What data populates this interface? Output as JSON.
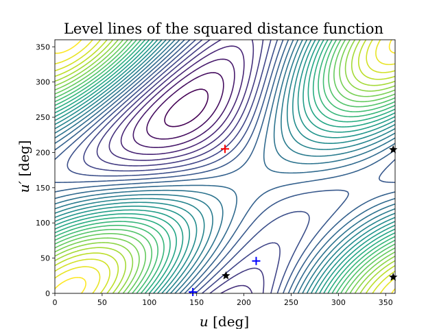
{
  "chart_data": {
    "type": "contour",
    "title": "Level lines of the squared distance function",
    "xlabel": "u [deg]",
    "ylabel": "u′ [deg]",
    "xlim": [
      0,
      360
    ],
    "ylim": [
      0,
      360
    ],
    "xticks": [
      0,
      50,
      100,
      150,
      200,
      250,
      300,
      350
    ],
    "yticks": [
      0,
      50,
      100,
      150,
      200,
      250,
      300,
      350
    ],
    "grid": false,
    "colormap": "viridis",
    "contour_levels": 30,
    "markers": [
      {
        "symbol": "plus",
        "color": "#ff0000",
        "points": [
          [
            180,
            205
          ]
        ]
      },
      {
        "symbol": "plus",
        "color": "#0000ff",
        "points": [
          [
            146,
            2
          ],
          [
            213,
            46
          ]
        ]
      },
      {
        "symbol": "star",
        "color": "#000000",
        "points": [
          [
            181,
            25
          ],
          [
            358,
            204
          ],
          [
            358,
            23
          ]
        ]
      }
    ]
  }
}
